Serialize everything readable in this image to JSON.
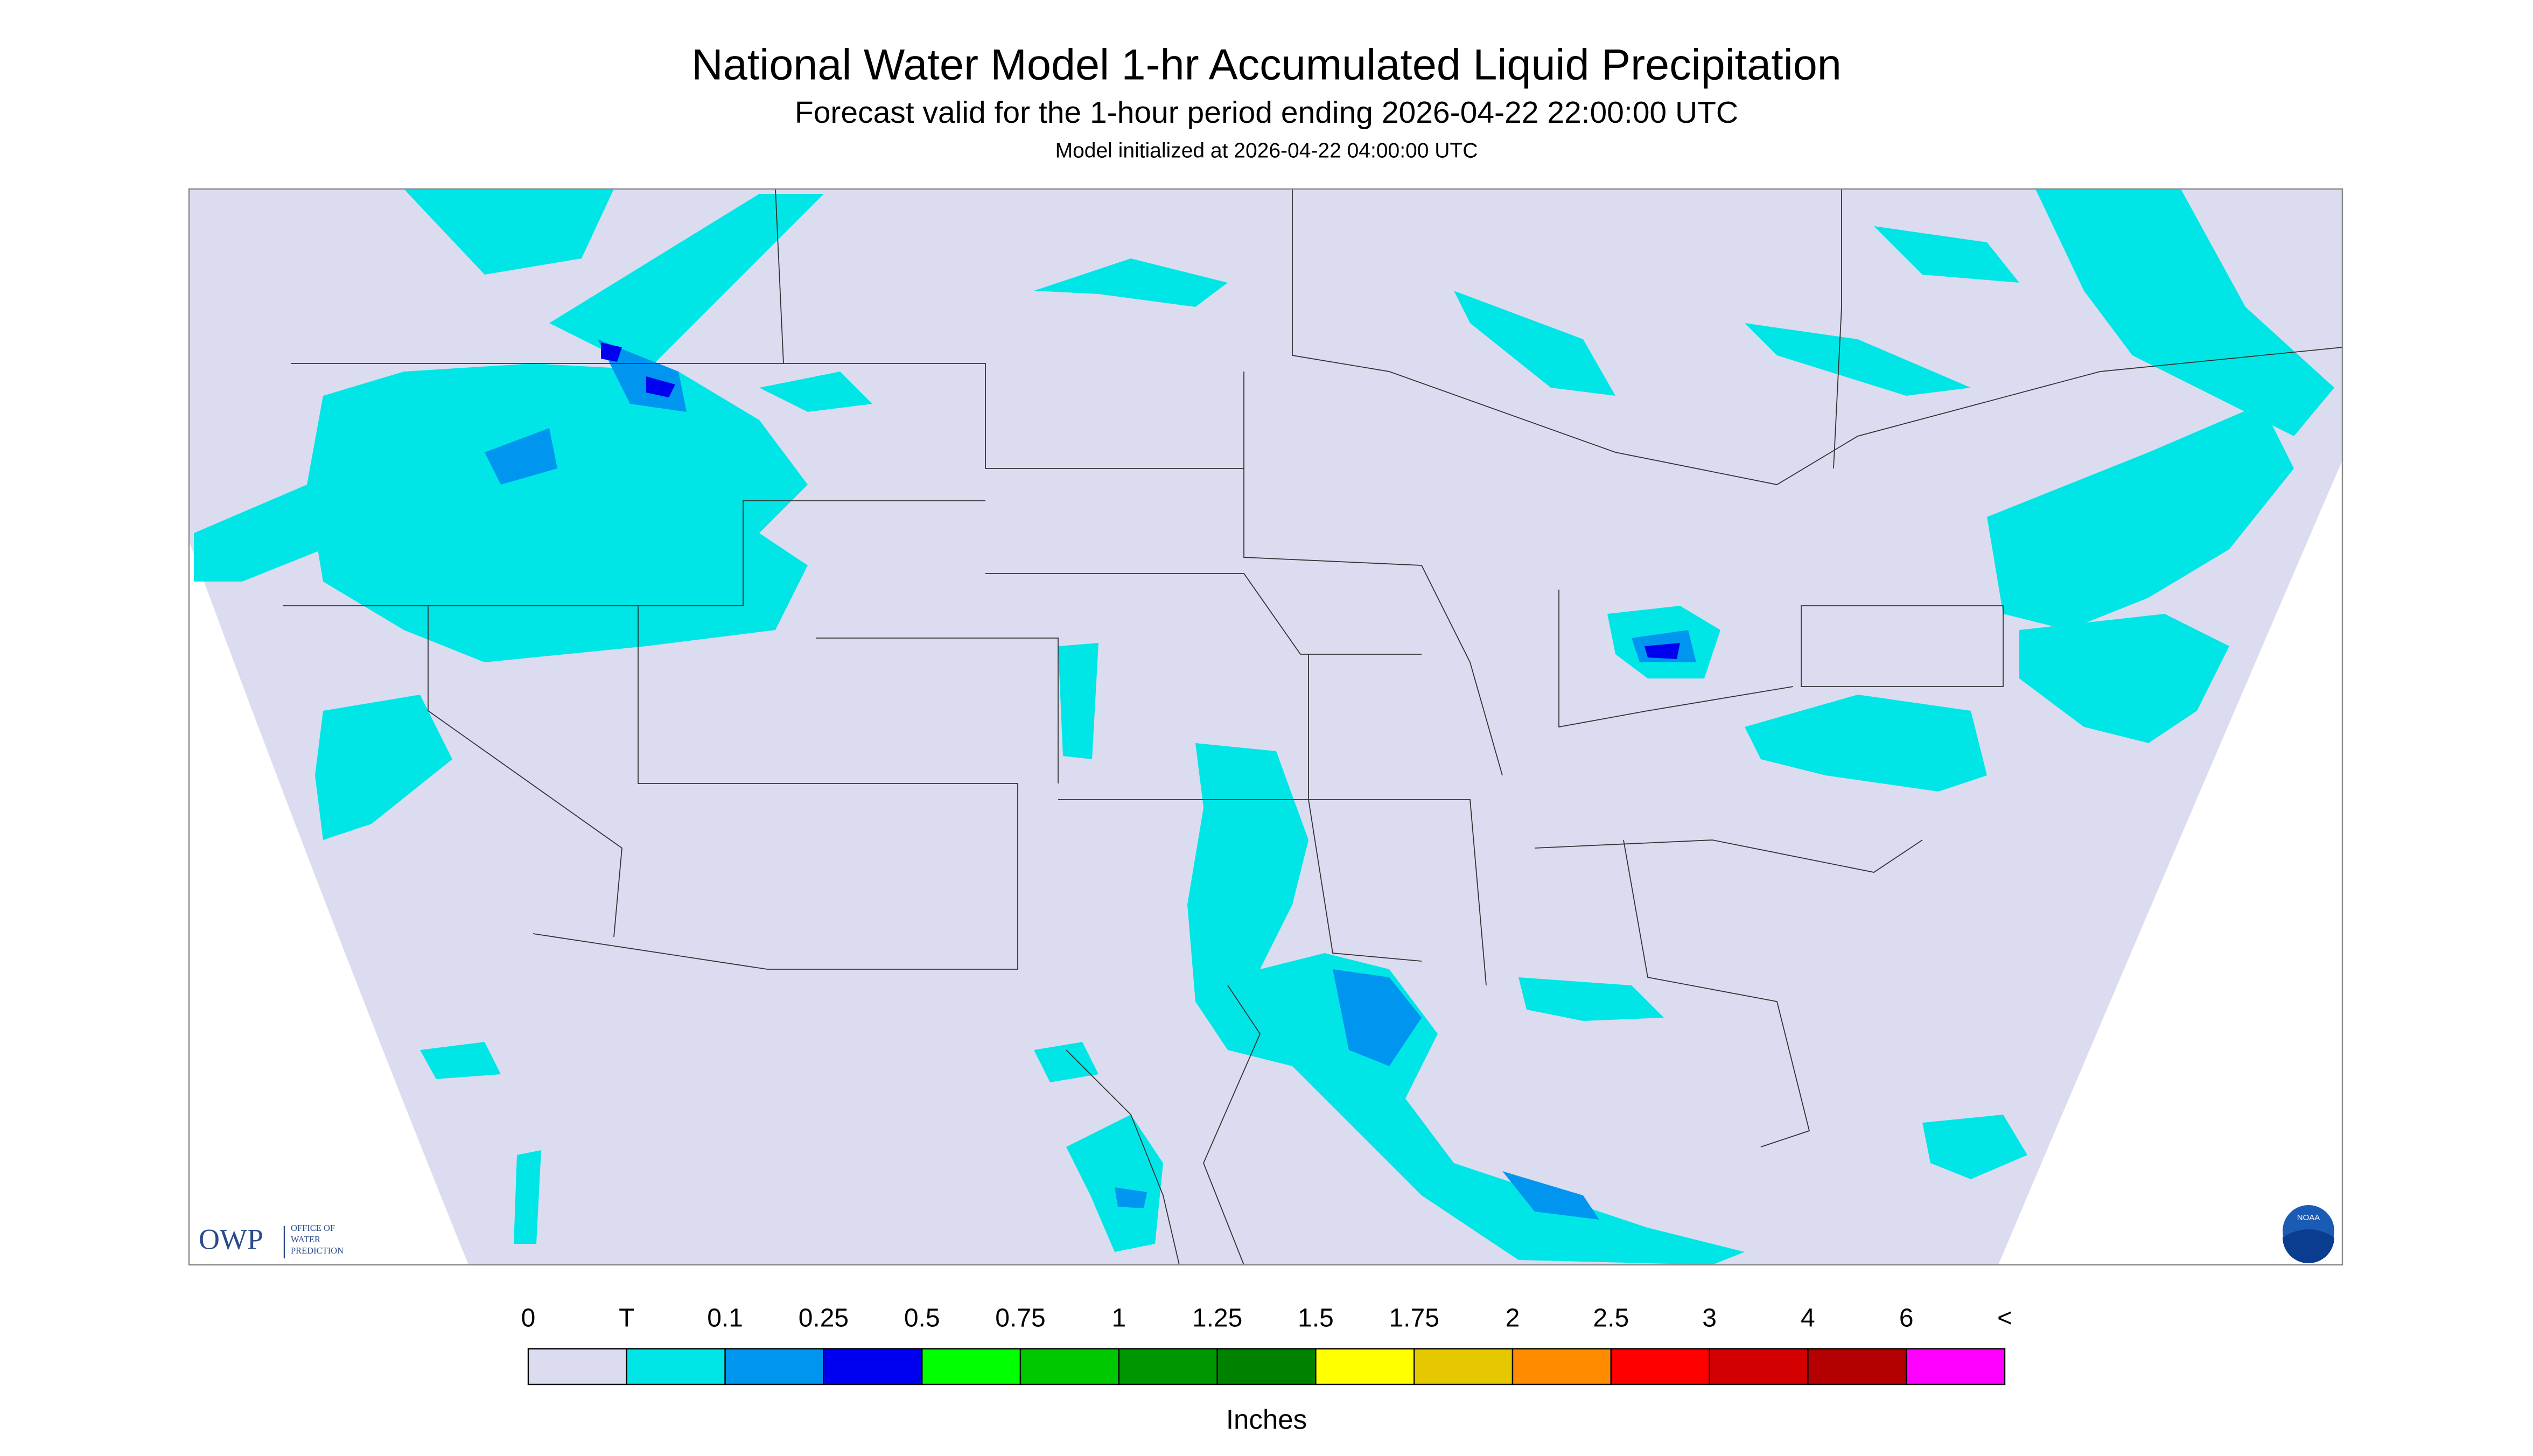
{
  "header": {
    "title": "National Water Model 1-hr Accumulated Liquid Precipitation",
    "subtitle": "Forecast valid for the 1-hour period ending 2026-04-22 22:00:00 UTC",
    "initialized": "Model initialized at 2026-04-22 04:00:00 UTC"
  },
  "legend": {
    "labels": [
      "0",
      "T",
      "0.1",
      "0.25",
      "0.5",
      "0.75",
      "1",
      "1.25",
      "1.5",
      "1.75",
      "2",
      "2.5",
      "3",
      "4",
      "6",
      "<"
    ],
    "colors": [
      "#dcdcf0",
      "#00e6e6",
      "#0096f0",
      "#0000f0",
      "#00ff00",
      "#00c800",
      "#009600",
      "#008200",
      "#ffff00",
      "#e6c800",
      "#ff8c00",
      "#ff0000",
      "#d20000",
      "#b40000",
      "#ff00ff",
      "#9650c8"
    ],
    "units": "Inches"
  },
  "logos": {
    "owp": "OWP",
    "owp_lines": [
      "OFFICE OF",
      "WATER",
      "PREDICTION"
    ],
    "noaa": "NOAA"
  }
}
